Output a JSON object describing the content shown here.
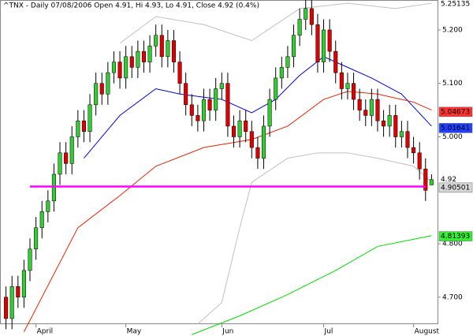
{
  "chart_data": {
    "type": "candlestick",
    "title": "^TNX - Daily 07/08/2006 Open 4.91, Hi 4.93, Lo 4.91, Close 4.92 (0.4%)",
    "up_color": "#33cc33",
    "down_color": "#e00000",
    "open": [
      4.7,
      4.66,
      4.72,
      4.7,
      4.75,
      4.79,
      4.83,
      4.86,
      4.88,
      4.93,
      4.97,
      4.95,
      5.0,
      5.03,
      5.01,
      5.06,
      5.1,
      5.08,
      5.12,
      5.14,
      5.11,
      5.15,
      5.13,
      5.16,
      5.14,
      5.17,
      5.19,
      5.15,
      5.18,
      5.14,
      5.1,
      5.06,
      5.04,
      5.03,
      5.07,
      5.05,
      5.09,
      5.1,
      5.02,
      5.0,
      5.03,
      5.01,
      4.98,
      4.96,
      5.02,
      5.07,
      5.11,
      5.13,
      5.15,
      5.19,
      5.22,
      5.24,
      5.21,
      5.14,
      5.2,
      5.16,
      5.12,
      5.09,
      5.1,
      5.07,
      5.05,
      5.04,
      5.07,
      5.03,
      5.02,
      5.04,
      5.0,
      5.01,
      4.98,
      4.97,
      4.94,
      4.91
    ],
    "high": [
      4.72,
      4.74,
      4.74,
      4.77,
      4.81,
      4.85,
      4.88,
      4.9,
      4.95,
      4.99,
      4.99,
      5.02,
      5.05,
      5.05,
      5.08,
      5.12,
      5.12,
      5.14,
      5.16,
      5.16,
      5.17,
      5.17,
      5.18,
      5.18,
      5.19,
      5.21,
      5.21,
      5.2,
      5.2,
      5.16,
      5.12,
      5.08,
      5.06,
      5.09,
      5.09,
      5.11,
      5.12,
      5.12,
      5.04,
      5.05,
      5.05,
      5.03,
      5.0,
      5.04,
      5.09,
      5.13,
      5.15,
      5.17,
      5.21,
      5.24,
      5.26,
      5.26,
      5.23,
      5.22,
      5.22,
      5.18,
      5.14,
      5.12,
      5.12,
      5.09,
      5.07,
      5.09,
      5.09,
      5.05,
      5.06,
      5.06,
      5.03,
      5.03,
      5.0,
      4.99,
      4.96,
      4.93
    ],
    "low": [
      4.64,
      4.64,
      4.68,
      4.68,
      4.73,
      4.77,
      4.81,
      4.84,
      4.86,
      4.91,
      4.93,
      4.93,
      4.98,
      4.99,
      4.99,
      5.04,
      5.06,
      5.06,
      5.1,
      5.09,
      5.09,
      5.11,
      5.11,
      5.12,
      5.12,
      5.15,
      5.13,
      5.13,
      5.12,
      5.08,
      5.04,
      5.02,
      5.01,
      5.01,
      5.03,
      5.03,
      5.07,
      5.0,
      4.98,
      4.98,
      4.99,
      4.96,
      4.94,
      4.94,
      5.0,
      5.05,
      5.09,
      5.11,
      5.13,
      5.17,
      5.2,
      5.19,
      5.12,
      5.12,
      5.14,
      5.1,
      5.07,
      5.07,
      5.05,
      5.03,
      5.02,
      5.02,
      5.01,
      5.0,
      5.0,
      4.98,
      4.98,
      4.96,
      4.95,
      4.92,
      4.88,
      4.91
    ],
    "close": [
      4.66,
      4.72,
      4.7,
      4.75,
      4.79,
      4.83,
      4.86,
      4.88,
      4.93,
      4.97,
      4.95,
      5.0,
      5.03,
      5.01,
      5.06,
      5.1,
      5.08,
      5.12,
      5.14,
      5.11,
      5.15,
      5.13,
      5.16,
      5.14,
      5.17,
      5.19,
      5.15,
      5.18,
      5.14,
      5.1,
      5.06,
      5.04,
      5.03,
      5.07,
      5.05,
      5.09,
      5.1,
      5.02,
      5.0,
      5.03,
      5.01,
      4.98,
      4.96,
      5.02,
      5.07,
      5.11,
      5.13,
      5.15,
      5.19,
      5.22,
      5.24,
      5.21,
      5.14,
      5.2,
      5.16,
      5.12,
      5.09,
      5.1,
      5.07,
      5.05,
      5.04,
      5.07,
      5.03,
      5.02,
      5.04,
      5.0,
      5.01,
      4.98,
      4.97,
      4.94,
      4.9,
      4.92
    ],
    "xlim": [
      -1,
      72
    ],
    "x_labels": [
      {
        "value": 5,
        "label": "April"
      },
      {
        "value": 20,
        "label": "May"
      },
      {
        "value": 36,
        "label": "Jun"
      },
      {
        "value": 53,
        "label": "Jul"
      },
      {
        "value": 68,
        "label": "August"
      }
    ],
    "ylim": [
      4.651,
      5.256
    ],
    "yticks": [
      {
        "value": 4.7,
        "label": "4.700"
      },
      {
        "value": 4.8,
        "label": "4.800"
      },
      {
        "value": 5.0,
        "label": "5.000"
      },
      {
        "value": 5.1,
        "label": "5.100"
      },
      {
        "value": 5.2,
        "label": "5.200"
      }
    ],
    "overlays": [
      {
        "color": "#0000ee",
        "x": [
          13,
          19,
          25,
          29,
          36,
          41,
          45,
          49,
          53,
          57,
          61,
          66,
          71
        ],
        "values": [
          4.96,
          5.04,
          5.09,
          5.08,
          5.07,
          5.045,
          5.07,
          5.115,
          5.15,
          5.13,
          5.11,
          5.08,
          5.02
        ]
      },
      {
        "color": "#ee2200",
        "x": [
          3,
          12,
          19,
          25,
          33,
          41,
          47,
          53,
          57,
          62,
          68,
          71
        ],
        "values": [
          4.635,
          4.83,
          4.89,
          4.945,
          4.98,
          4.995,
          5.02,
          5.07,
          5.085,
          5.08,
          5.065,
          5.05
        ]
      },
      {
        "color": "#00dd00",
        "x": [
          31,
          39,
          47,
          55,
          62,
          71
        ],
        "values": [
          4.63,
          4.665,
          4.705,
          4.75,
          4.795,
          4.815
        ]
      },
      {
        "color": "#c0c0c0",
        "x": [
          19,
          25,
          33,
          41,
          49,
          57,
          65,
          71
        ],
        "values": [
          5.175,
          5.225,
          5.21,
          5.18,
          5.24,
          5.25,
          5.24,
          5.25
        ]
      },
      {
        "color": "#c0c0c0",
        "x": [
          32,
          36,
          39,
          41,
          47,
          52,
          57,
          62,
          68,
          71
        ],
        "values": [
          4.65,
          4.69,
          4.83,
          4.915,
          4.96,
          4.97,
          4.97,
          4.96,
          4.945,
          4.915
        ]
      }
    ],
    "hline": {
      "value": 4.907,
      "x": [
        4,
        70
      ],
      "color": "#ff00ff"
    },
    "price_labels": [
      {
        "value": 5.25135,
        "bg": "#ffffff",
        "fg": "#888888"
      },
      {
        "value": 5.04673,
        "bg": "#ff3030",
        "fg": "#000000"
      },
      {
        "value": 5.01641,
        "bg": "#2040ff",
        "fg": "#ffffff"
      },
      {
        "value": 4.92,
        "bg": "#ffffff",
        "fg": "#000000"
      },
      {
        "value": 4.90501,
        "bg": "#d8d8d8",
        "fg": "#000000"
      },
      {
        "value": 4.81393,
        "bg": "#33ee33",
        "fg": "#000000"
      }
    ]
  }
}
